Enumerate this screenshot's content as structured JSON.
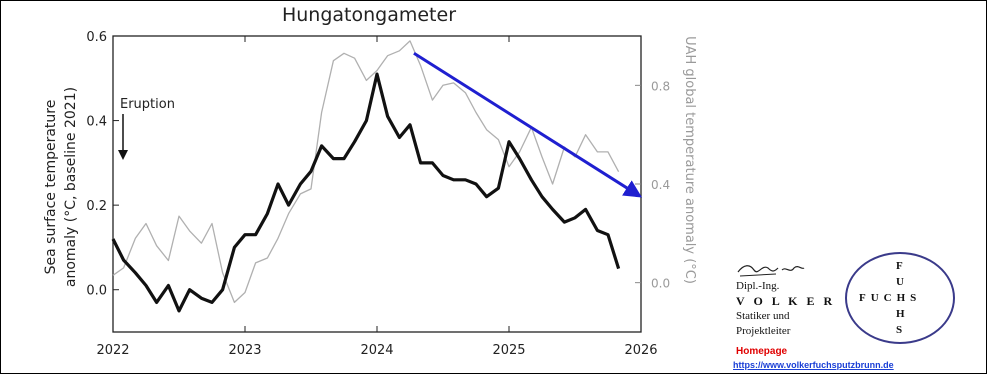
{
  "chart_data": {
    "type": "line",
    "title": "Hungatongameter",
    "ylabel_left_line1": "Sea surface temperature",
    "ylabel_left_line2": "anomaly (°C, baseline 2021)",
    "ylabel_right": "UAH global temperature anomaly (°C)",
    "xlim": [
      2022,
      2026
    ],
    "ylim_left": [
      -0.1,
      0.6
    ],
    "ylim_right": [
      -0.2,
      1.0
    ],
    "x_ticks": [
      "2022",
      "2023",
      "2024",
      "2025",
      "2026"
    ],
    "y_ticks_left": [
      "0.0",
      "0.2",
      "0.4",
      "0.6"
    ],
    "y_ticks_right": [
      "0.0",
      "0.4",
      "0.8"
    ],
    "grid": false,
    "annotation": "Eruption",
    "series": [
      {
        "axis": "left",
        "color": "#111111",
        "x": [
          2022.0,
          2022.08,
          2022.17,
          2022.25,
          2022.33,
          2022.42,
          2022.5,
          2022.58,
          2022.67,
          2022.75,
          2022.83,
          2022.92,
          2023.0,
          2023.08,
          2023.17,
          2023.25,
          2023.33,
          2023.42,
          2023.5,
          2023.58,
          2023.67,
          2023.75,
          2023.83,
          2023.92,
          2024.0,
          2024.08,
          2024.17,
          2024.25,
          2024.33,
          2024.42,
          2024.5,
          2024.58,
          2024.67,
          2024.75,
          2024.83,
          2024.92,
          2025.0,
          2025.08,
          2025.17,
          2025.25,
          2025.33,
          2025.42,
          2025.5,
          2025.58,
          2025.67,
          2025.75,
          2025.83
        ],
        "values": [
          0.12,
          0.07,
          0.04,
          0.01,
          -0.03,
          0.01,
          -0.05,
          0.0,
          -0.02,
          -0.03,
          0.0,
          0.1,
          0.13,
          0.13,
          0.18,
          0.25,
          0.2,
          0.25,
          0.28,
          0.34,
          0.31,
          0.31,
          0.35,
          0.4,
          0.51,
          0.41,
          0.36,
          0.39,
          0.3,
          0.3,
          0.27,
          0.26,
          0.26,
          0.25,
          0.22,
          0.24,
          0.35,
          0.31,
          0.26,
          0.22,
          0.19,
          0.16,
          0.17,
          0.19,
          0.14,
          0.13,
          0.05
        ]
      },
      {
        "axis": "right",
        "color": "#b0b0b0",
        "x": [
          2022.0,
          2022.08,
          2022.17,
          2022.25,
          2022.33,
          2022.42,
          2022.5,
          2022.58,
          2022.67,
          2022.75,
          2022.83,
          2022.92,
          2023.0,
          2023.08,
          2023.17,
          2023.25,
          2023.33,
          2023.42,
          2023.5,
          2023.58,
          2023.67,
          2023.75,
          2023.83,
          2023.92,
          2024.0,
          2024.08,
          2024.17,
          2024.25,
          2024.33,
          2024.42,
          2024.5,
          2024.58,
          2024.67,
          2024.75,
          2024.83,
          2024.92,
          2025.0,
          2025.08,
          2025.17,
          2025.25,
          2025.33,
          2025.42,
          2025.5,
          2025.58,
          2025.67,
          2025.75,
          2025.83
        ],
        "values": [
          0.03,
          0.06,
          0.18,
          0.24,
          0.15,
          0.09,
          0.27,
          0.21,
          0.16,
          0.24,
          0.04,
          -0.08,
          -0.04,
          0.08,
          0.1,
          0.18,
          0.28,
          0.36,
          0.38,
          0.69,
          0.9,
          0.93,
          0.91,
          0.82,
          0.86,
          0.92,
          0.94,
          0.98,
          0.88,
          0.74,
          0.8,
          0.81,
          0.77,
          0.69,
          0.62,
          0.58,
          0.47,
          0.53,
          0.63,
          0.51,
          0.4,
          0.55,
          0.51,
          0.6,
          0.53,
          0.53,
          0.45
        ]
      }
    ],
    "arrow": {
      "x1": 2024.28,
      "y1_right": 0.93,
      "x2": 2026.0,
      "y2_right": 0.35,
      "color": "#1f1fd0"
    }
  },
  "logo": {
    "line1": "Dipl.-Ing.",
    "line2": "V O L K E R",
    "line3": "Statiker und",
    "line4": "Projektleiter",
    "homepage": "Homepage",
    "url": "https://www.volkerfuchsputzbrunn.de",
    "seal": {
      "top": "F",
      "u": "U",
      "middle": "FUCHS",
      "h": "H",
      "bottom": "S"
    }
  }
}
